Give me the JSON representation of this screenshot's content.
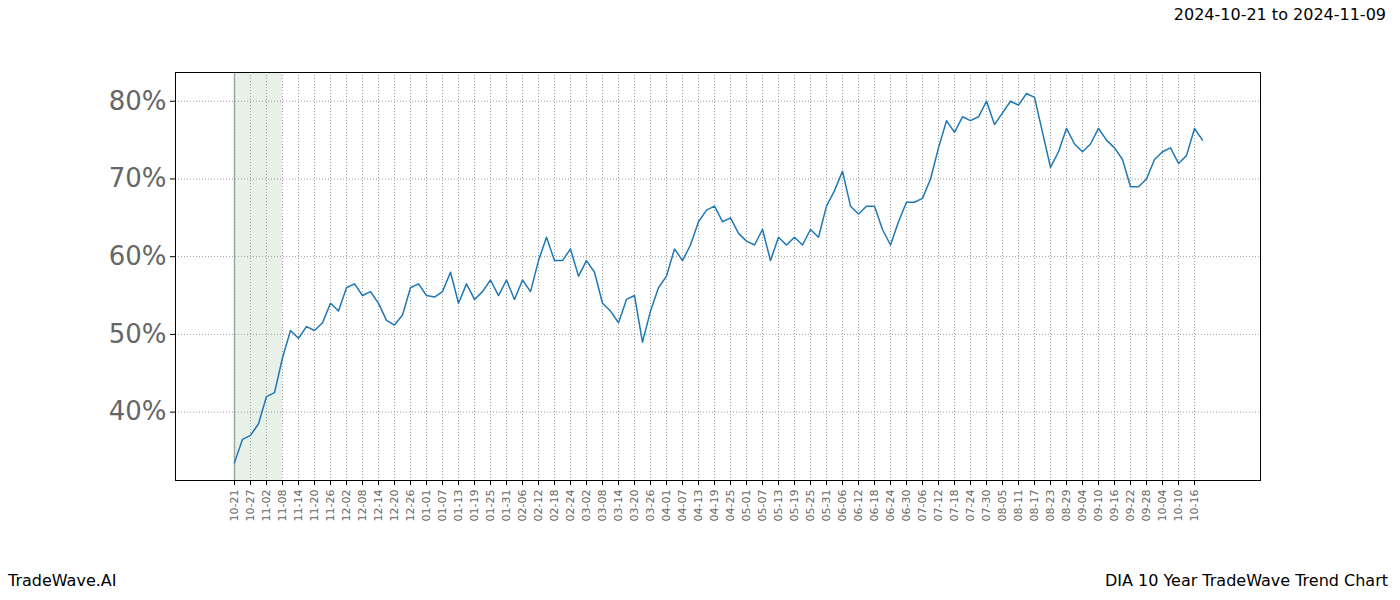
{
  "chart_data": {
    "type": "line",
    "title": "2024-10-21 to 2024-11-09",
    "footer_left": "TradeWave.AI",
    "footer_right": "DIA 10 Year TradeWave Trend Chart",
    "categories": [
      "10-21",
      null,
      "10-27",
      null,
      "11-02",
      null,
      "11-08",
      null,
      "11-14",
      null,
      "11-20",
      null,
      "11-26",
      null,
      "12-02",
      null,
      "12-08",
      null,
      "12-14",
      null,
      "12-20",
      null,
      "12-26",
      null,
      "01-01",
      null,
      "01-07",
      null,
      "01-13",
      null,
      "01-19",
      null,
      "01-25",
      null,
      "01-31",
      null,
      "02-06",
      null,
      "02-12",
      null,
      "02-18",
      null,
      "02-24",
      null,
      "03-02",
      null,
      "03-08",
      null,
      "03-14",
      null,
      "03-20",
      null,
      "03-26",
      null,
      "04-01",
      null,
      "04-07",
      null,
      "04-13",
      null,
      "04-19",
      null,
      "04-25",
      null,
      "05-01",
      null,
      "05-07",
      null,
      "05-13",
      null,
      "05-19",
      null,
      "05-25",
      null,
      "05-31",
      null,
      "06-06",
      null,
      "06-12",
      null,
      "06-18",
      null,
      "06-24",
      null,
      "06-30",
      null,
      "07-06",
      null,
      "07-12",
      null,
      "07-18",
      null,
      "07-24",
      null,
      "07-30",
      null,
      "08-05",
      null,
      "08-11",
      null,
      "08-17",
      null,
      "08-23",
      null,
      "08-29",
      null,
      "09-04",
      null,
      "09-10",
      null,
      "09-16",
      null,
      "09-22",
      null,
      "09-28",
      null,
      "10-04",
      null,
      "10-10",
      null,
      "10-16",
      null
    ],
    "values": [
      33.5,
      36.5,
      37,
      38.5,
      42,
      42.5,
      47,
      50.5,
      49.5,
      51,
      50.5,
      51.5,
      54,
      53,
      56,
      56.5,
      55,
      55.5,
      54,
      51.8,
      51.2,
      52.5,
      56,
      56.5,
      55,
      54.8,
      55.5,
      58,
      54,
      56.5,
      54.5,
      55.5,
      57,
      55,
      57,
      54.5,
      57,
      55.5,
      59.5,
      62.5,
      59.5,
      59.5,
      61,
      57.5,
      59.5,
      58,
      54,
      53,
      51.5,
      54.5,
      55,
      49,
      53,
      56,
      57.5,
      61,
      59.5,
      61.5,
      64.5,
      66,
      66.5,
      64.5,
      65,
      63,
      62,
      61.5,
      63.5,
      59.5,
      62.5,
      61.5,
      62.5,
      61.5,
      63.5,
      62.5,
      66.5,
      68.5,
      71,
      66.5,
      65.5,
      66.5,
      66.5,
      63.5,
      61.5,
      64.5,
      67,
      67,
      67.5,
      70,
      74,
      77.5,
      76,
      78,
      77.5,
      78,
      80,
      77,
      78.5,
      80,
      79.5,
      81,
      80.5,
      76,
      71.5,
      73.5,
      76.5,
      74.5,
      73.5,
      74.5,
      76.5,
      75,
      74,
      72.5,
      69,
      69,
      70,
      72.5,
      73.5,
      74,
      72,
      73,
      76.5,
      75
    ],
    "color": "#1f77b4",
    "highlight_range": [
      "10-21",
      "11-08"
    ],
    "ylim": [
      31.2,
      83.7
    ],
    "yticks": [
      {
        "value": 40,
        "label": "40%"
      },
      {
        "value": 50,
        "label": "50%"
      },
      {
        "value": 60,
        "label": "60%"
      },
      {
        "value": 70,
        "label": "70%"
      },
      {
        "value": 80,
        "label": "80%"
      }
    ],
    "grid": true
  }
}
